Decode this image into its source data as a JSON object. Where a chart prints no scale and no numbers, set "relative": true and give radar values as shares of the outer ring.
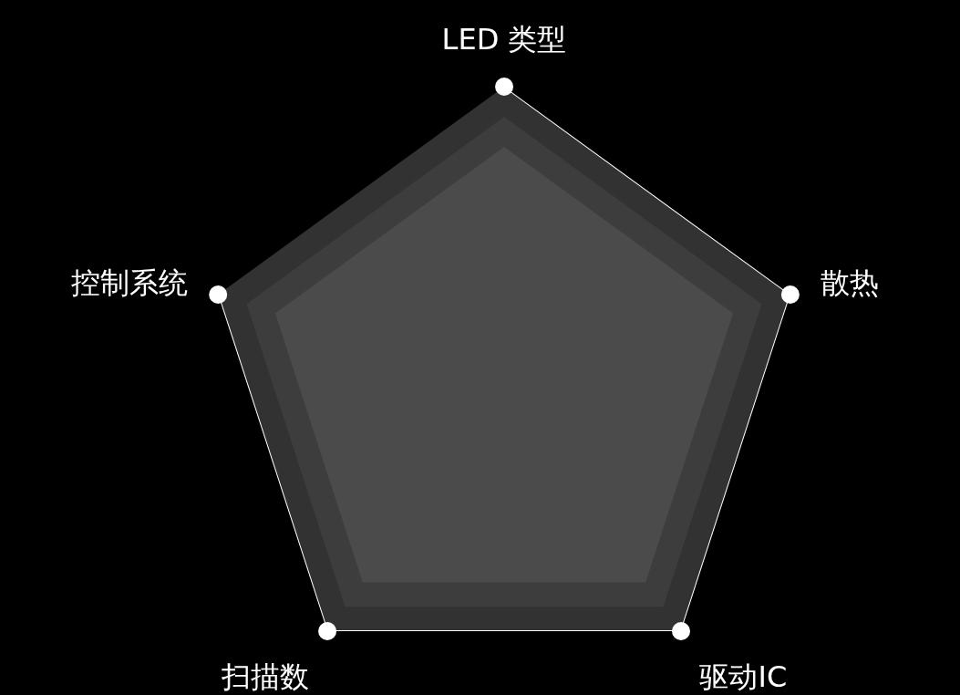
{
  "chart_data": {
    "type": "radar",
    "relative": true,
    "categories": [
      "LED 类型",
      "散热",
      "驱动IC",
      "扫描数",
      "控制系统"
    ],
    "series": [
      {
        "color": "#ffffff",
        "values": [
          1,
          1,
          1,
          1,
          1
        ]
      }
    ],
    "marker": "circle"
  }
}
